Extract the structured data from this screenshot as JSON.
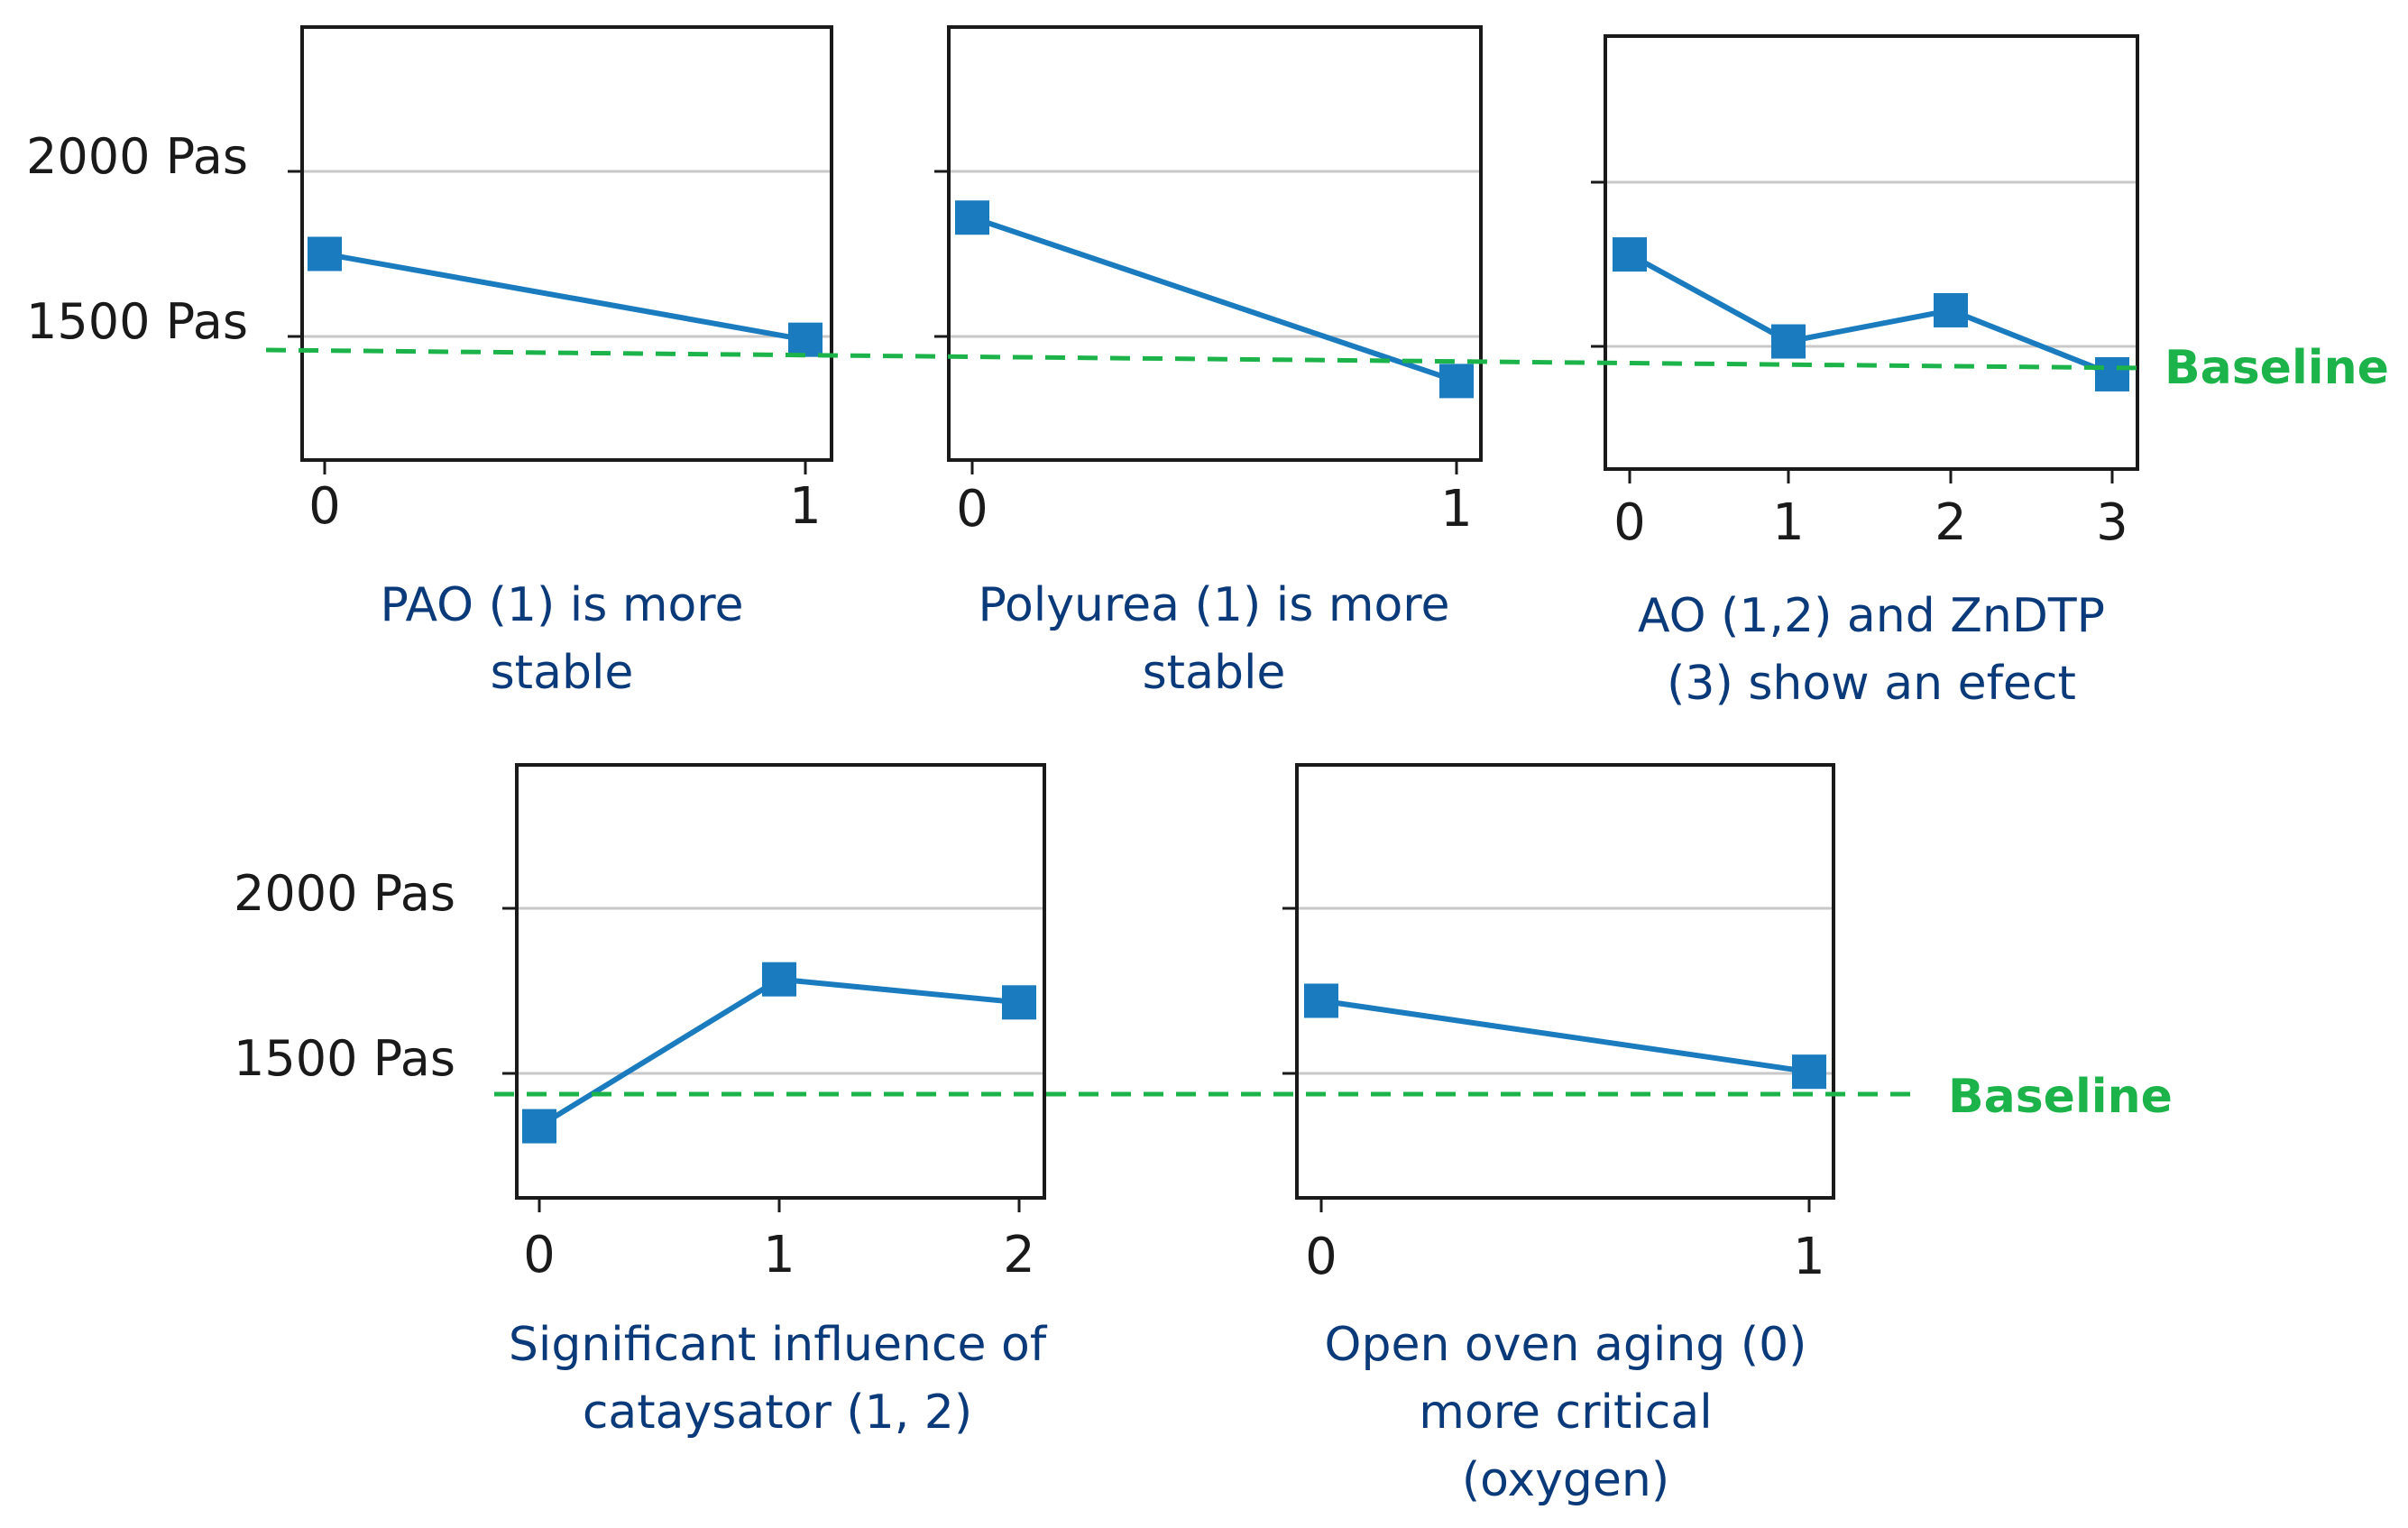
{
  "chart_data": [
    {
      "type": "line",
      "x": [
        0,
        1
      ],
      "values": [
        1750,
        1490
      ],
      "ylim": [
        1150,
        2450
      ],
      "y_tick_labels": [
        "2000 Pas",
        "1500 Pas"
      ],
      "caption_lines": [
        "PAO (1) is more",
        "stable"
      ],
      "series_color": "#1a7bbf"
    },
    {
      "type": "line",
      "x": [
        0,
        1
      ],
      "values": [
        1860,
        1365
      ],
      "ylim": [
        1150,
        2450
      ],
      "y_tick_labels": [],
      "caption_lines": [
        "Polyurea (1) is more",
        "stable"
      ],
      "series_color": "#1a7bbf"
    },
    {
      "type": "line",
      "x": [
        0,
        1,
        2,
        3
      ],
      "values": [
        1780,
        1515,
        1610,
        1415
      ],
      "ylim": [
        1150,
        2450
      ],
      "y_tick_labels": [],
      "caption_lines": [
        "AO (1,2) and ZnDTP",
        "(3) show an efect"
      ],
      "series_color": "#1a7bbf"
    },
    {
      "type": "line",
      "x": [
        0,
        1,
        2
      ],
      "values": [
        1340,
        1785,
        1715
      ],
      "ylim": [
        1150,
        2450
      ],
      "y_tick_labels": [
        "2000 Pas",
        "1500 Pas"
      ],
      "caption_lines": [
        "Significant influence of",
        "cataysator (1, 2)"
      ],
      "series_color": "#1a7bbf"
    },
    {
      "type": "line",
      "x": [
        0,
        1
      ],
      "values": [
        1720,
        1505
      ],
      "ylim": [
        1150,
        2450
      ],
      "y_tick_labels": [],
      "caption_lines": [
        "Open oven aging (0)",
        "more critical",
        "(oxygen)"
      ],
      "series_color": "#1a7bbf"
    }
  ],
  "baseline": {
    "label": "Baseline",
    "value": 1440,
    "color": "#1cb34a"
  },
  "colors": {
    "series": "#1a7bbf",
    "caption": "#0b3a7a",
    "grid": "#c8c8c8",
    "axes": "#1a1a1a"
  }
}
